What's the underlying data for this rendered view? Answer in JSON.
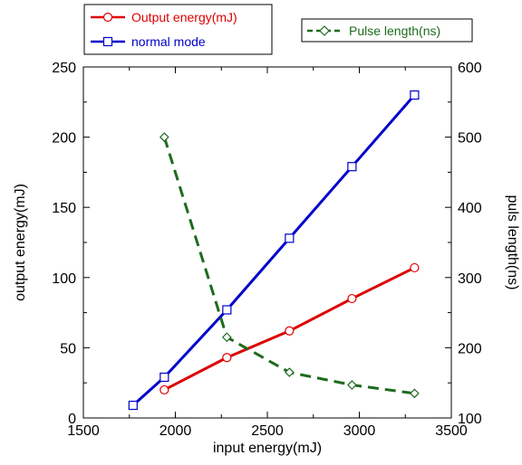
{
  "chart_data": {
    "type": "line",
    "xlabel": "input energy(mJ)",
    "ylabel": "output energy(mJ)",
    "y2label": "puls length(ns)",
    "xlim": [
      1500,
      3500
    ],
    "ylim": [
      0,
      250
    ],
    "y2lim": [
      100,
      600
    ],
    "xticks": [
      1500,
      2000,
      2500,
      3000,
      3500
    ],
    "yticks": [
      0,
      50,
      100,
      150,
      200,
      250
    ],
    "y2ticks": [
      100,
      200,
      300,
      400,
      500,
      600
    ],
    "series": [
      {
        "name": "Output energy(mJ)",
        "axis": "left",
        "color": "#dd0000",
        "marker": "circle",
        "dash": "solid",
        "x": [
          1940,
          2280,
          2620,
          2960,
          3300
        ],
        "y": [
          20,
          43,
          62,
          85,
          107
        ]
      },
      {
        "name": "normal mode",
        "axis": "left",
        "color": "#0000cc",
        "marker": "square",
        "dash": "solid",
        "x": [
          1770,
          1940,
          2280,
          2620,
          2960,
          3300
        ],
        "y": [
          9,
          29,
          77,
          128,
          179,
          230
        ]
      },
      {
        "name": "Pulse length(ns)",
        "axis": "right",
        "color": "#1e6b1e",
        "marker": "diamond",
        "dash": "dashed",
        "x": [
          1940,
          2280,
          2620,
          2960,
          3300
        ],
        "y": [
          500,
          215,
          165,
          147,
          135
        ]
      }
    ],
    "legend": [
      {
        "label": "Output energy(mJ)",
        "series": 0,
        "position": "top-left"
      },
      {
        "label": "normal mode",
        "series": 1,
        "position": "top-left"
      },
      {
        "label": "Pulse length(ns)",
        "series": 2,
        "position": "top-right"
      }
    ]
  }
}
